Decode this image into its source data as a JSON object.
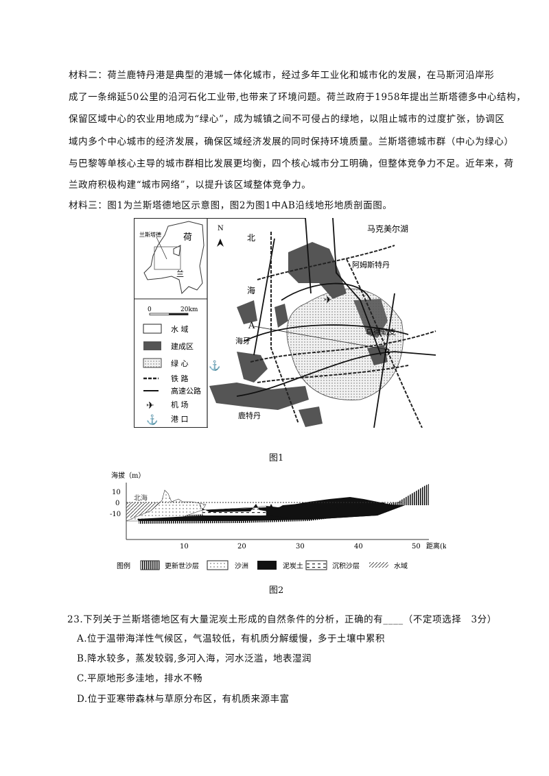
{
  "material2": {
    "lines": [
      "材料二：荷兰鹿特丹港是典型的港城一体化城市，经过多年工业化和城市化的发展，在马斯河沿岸形",
      "成了一条绵延50公里的沿河石化工业带,也带来了环境问题。荷兰政府于1958年提出兰斯塔德多中心结构，",
      "保留区域中心的农业用地成为“绿心”，成为城镇之间不可侵占的绿地，以阻止城市的过度扩张，协调区",
      "域内多个中心城市的经济发展，确保区域经济发展的同时保持环境质量。兰斯塔德城市群（中心为绿心）",
      "与巴黎等单核心主导的城市群相比发展更均衡，四个核心城市分工明确，但整体竞争力不足。近年来，荷",
      "兰政府积极构建“城市网络”，以提升该区域整体竞争力。"
    ]
  },
  "material3": "材料三：图1为兰斯塔德地区示意图，图2为图1中AB沿线地形地质剖面图。",
  "figure1": {
    "caption": "图1",
    "inset": {
      "label": "兰斯塔德",
      "country_1": "荷",
      "country_2": "兰"
    },
    "scale": {
      "start": "0",
      "end": "20km"
    },
    "legend": [
      "水 域",
      "建成区",
      "绿 心",
      "铁 路",
      "高速公路",
      "机 场",
      "港 口"
    ],
    "north": "N",
    "labels": {
      "lake": "马克美尔湖",
      "sea_1": "北",
      "sea_2": "海",
      "amsterdam": "阿姆斯特丹",
      "hague": "海牙",
      "utrecht": "乌得勒支",
      "rotterdam": "鹿特丹",
      "a": "A",
      "b": "B"
    }
  },
  "figure2": {
    "caption": "图2",
    "ylabel": "海拔（m）",
    "xlabel": "距离(km)",
    "yticks": [
      "10",
      "0",
      "-10"
    ],
    "xticks": [
      "10",
      "20",
      "30",
      "40",
      "50"
    ],
    "sea_label": "北海",
    "legend_title": "图例",
    "legend": [
      "更新世沙层",
      "沙洲",
      "泥炭土",
      "沉积沙层",
      "水域"
    ]
  },
  "question": {
    "stem": "23.下列关于兰斯塔德地区有大量泥炭土形成的自然条件的分析，正确的有____（不定项选择　3分）",
    "options": [
      "A.位于温带海洋性气候区，气温较低，有机质分解缓慢，多于土壤中累积",
      "B.降水较多，蒸发较弱,多河入海，河水泛滥，地表湿润",
      "C.平原地形多洼地，排水不畅",
      "D.位于亚寒带森林与草原分布区，有机质来源丰富"
    ]
  }
}
